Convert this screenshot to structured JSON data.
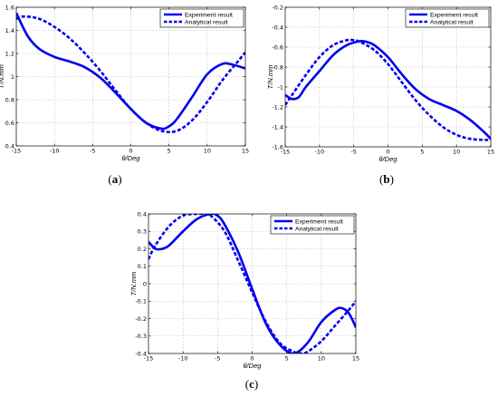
{
  "chart_data": [
    {
      "panel_label": "(a)",
      "type": "line",
      "xlabel": "θ/Deg",
      "ylabel": "T/N.mm",
      "xlim": [
        -15,
        15
      ],
      "ylim": [
        0.4,
        1.6
      ],
      "xticks": [
        "-15",
        "-10",
        "-5",
        "0",
        "5",
        "10",
        "15"
      ],
      "yticks": [
        "0.4",
        "0.6",
        "0.8",
        "1",
        "1.2",
        "1.4",
        "1.6"
      ],
      "grid": true,
      "legend_position": "top-right",
      "series": [
        {
          "name": "Experiment result",
          "style": "solid",
          "color": "#0000ee",
          "x": [
            -15,
            -13.5,
            -12,
            -10,
            -8,
            -6,
            -4,
            -2,
            0,
            2,
            4,
            5,
            6,
            8,
            10,
            12,
            13.5,
            15
          ],
          "y": [
            1.55,
            1.35,
            1.24,
            1.17,
            1.13,
            1.08,
            0.99,
            0.86,
            0.72,
            0.6,
            0.55,
            0.57,
            0.63,
            0.82,
            1.02,
            1.11,
            1.1,
            1.07
          ]
        },
        {
          "name": "Analytical result",
          "style": "dashed",
          "color": "#0000ee",
          "x": [
            -15,
            -14,
            -12,
            -10,
            -8,
            -6,
            -4,
            -2,
            0,
            2,
            4,
            6,
            8,
            10,
            12,
            14,
            15
          ],
          "y": [
            1.5,
            1.52,
            1.5,
            1.43,
            1.33,
            1.2,
            1.05,
            0.88,
            0.72,
            0.6,
            0.53,
            0.53,
            0.62,
            0.78,
            0.97,
            1.13,
            1.21
          ]
        }
      ]
    },
    {
      "panel_label": "(b)",
      "type": "line",
      "xlabel": "θ/Deg",
      "ylabel": "T/N.mm",
      "xlim": [
        -15,
        15
      ],
      "ylim": [
        -1.6,
        -0.2
      ],
      "xticks": [
        "-15",
        "-10",
        "-5",
        "0",
        "5",
        "10",
        "15"
      ],
      "yticks": [
        "-1.6",
        "-1.4",
        "-1.2",
        "-1",
        "-0.8",
        "-0.6",
        "-0.4",
        "-0.2"
      ],
      "grid": true,
      "legend_position": "top-right",
      "series": [
        {
          "name": "Experiment result",
          "style": "solid",
          "color": "#0000ee",
          "x": [
            -15,
            -14,
            -13,
            -12,
            -10,
            -8,
            -6,
            -4,
            -3,
            -2,
            0,
            2,
            4,
            6,
            8,
            10,
            12,
            14,
            15
          ],
          "y": [
            -1.08,
            -1.12,
            -1.1,
            -1.0,
            -0.84,
            -0.68,
            -0.58,
            -0.54,
            -0.55,
            -0.58,
            -0.7,
            -0.87,
            -1.02,
            -1.12,
            -1.18,
            -1.24,
            -1.33,
            -1.45,
            -1.52
          ]
        },
        {
          "name": "Analytical result",
          "style": "dashed",
          "color": "#0000ee",
          "x": [
            -15,
            -14,
            -12,
            -10,
            -8,
            -6,
            -5,
            -4,
            -2,
            0,
            2,
            4,
            6,
            8,
            10,
            12,
            14,
            15
          ],
          "y": [
            -1.18,
            -1.08,
            -0.88,
            -0.7,
            -0.58,
            -0.53,
            -0.53,
            -0.55,
            -0.63,
            -0.77,
            -0.95,
            -1.13,
            -1.28,
            -1.4,
            -1.48,
            -1.52,
            -1.53,
            -1.53
          ]
        }
      ]
    },
    {
      "panel_label": "(c)",
      "type": "line",
      "xlabel": "θ/Deg",
      "ylabel": "T/N.mm",
      "xlim": [
        -15,
        15
      ],
      "ylim": [
        -0.4,
        0.4
      ],
      "xticks": [
        "-15",
        "-10",
        "-5",
        "0",
        "5",
        "10",
        "15"
      ],
      "yticks": [
        "-0.4",
        "-0.3",
        "-0.2",
        "-0.1",
        "0",
        "0.1",
        "0.2",
        "0.3",
        "0.4"
      ],
      "grid": true,
      "legend_position": "top-right",
      "series": [
        {
          "name": "Experiment result",
          "style": "solid",
          "color": "#0000ee",
          "x": [
            -15,
            -14,
            -13,
            -12,
            -10,
            -8,
            -6,
            -5,
            -4,
            -2,
            0,
            2,
            4,
            6,
            8,
            10,
            12,
            13,
            14,
            15
          ],
          "y": [
            0.24,
            0.2,
            0.2,
            0.22,
            0.3,
            0.37,
            0.4,
            0.39,
            0.34,
            0.18,
            -0.03,
            -0.23,
            -0.35,
            -0.4,
            -0.34,
            -0.22,
            -0.15,
            -0.14,
            -0.17,
            -0.25
          ]
        },
        {
          "name": "Analytical result",
          "style": "dashed",
          "color": "#0000ee",
          "x": [
            -15,
            -14,
            -12,
            -10,
            -8,
            -7,
            -6,
            -4,
            -2,
            0,
            2,
            4,
            6,
            7,
            8,
            10,
            12,
            14,
            15
          ],
          "y": [
            0.14,
            0.22,
            0.33,
            0.39,
            0.4,
            0.4,
            0.39,
            0.3,
            0.13,
            -0.05,
            -0.22,
            -0.34,
            -0.39,
            -0.4,
            -0.39,
            -0.33,
            -0.24,
            -0.15,
            -0.1
          ]
        }
      ]
    }
  ]
}
